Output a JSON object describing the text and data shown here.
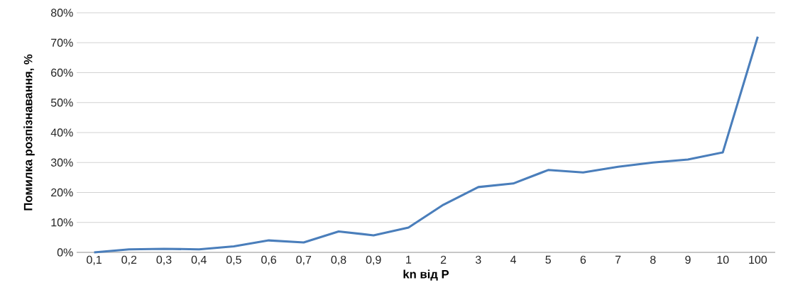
{
  "chart_data": {
    "type": "line",
    "xlabel": "kn від P",
    "ylabel": "Помилка розпізнавання, %",
    "categories": [
      "0,1",
      "0,2",
      "0,3",
      "0,4",
      "0,5",
      "0,6",
      "0,7",
      "0,8",
      "0,9",
      "1",
      "2",
      "3",
      "4",
      "5",
      "6",
      "7",
      "8",
      "9",
      "10",
      "100"
    ],
    "values": [
      0,
      1,
      1.2,
      1,
      2,
      4,
      3.3,
      7,
      5.7,
      8.3,
      15.9,
      21.8,
      23,
      27.5,
      26.7,
      28.6,
      30,
      31,
      33.4,
      72
    ],
    "color": "#4a7ebb",
    "ylim": [
      0,
      80
    ],
    "yticks": [
      {
        "value": 0,
        "label": "0%"
      },
      {
        "value": 10,
        "label": "10%"
      },
      {
        "value": 20,
        "label": "20%"
      },
      {
        "value": 30,
        "label": "30%"
      },
      {
        "value": 40,
        "label": "40%"
      },
      {
        "value": 50,
        "label": "50%"
      },
      {
        "value": 60,
        "label": "60%"
      },
      {
        "value": 70,
        "label": "70%"
      },
      {
        "value": 80,
        "label": "80%"
      }
    ],
    "grid": "y",
    "marker": "none",
    "line_style": "solid"
  }
}
